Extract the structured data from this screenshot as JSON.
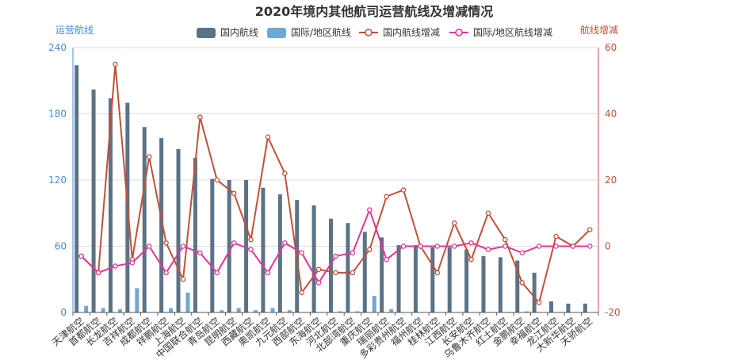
{
  "chart_data": {
    "type": "bar",
    "title": "2020年境内其他航司运营航线及增减情况",
    "ylabel_left": "运营航线",
    "ylabel_right": "航线增减",
    "ylim_left": [
      0,
      240
    ],
    "ylim_right": [
      -20,
      60
    ],
    "yticks_left": [
      0,
      60,
      120,
      180,
      240
    ],
    "yticks_right": [
      -20,
      0,
      20,
      40,
      60
    ],
    "grid": true,
    "legend_position": "top",
    "categories": [
      "天津航空",
      "首都航空",
      "长龙航空",
      "吉祥航空",
      "成都航空",
      "祥鹏航空",
      "上海航空",
      "中国联合航空",
      "青岛航空",
      "昆明航空",
      "西藏航空",
      "奥凯航空",
      "九元航空",
      "西部航空",
      "东海航空",
      "河北航空",
      "北部湾航空",
      "重庆航空",
      "瑞丽航空",
      "多彩贵州航空",
      "福州航空",
      "桂林航空",
      "江西航空",
      "长安航空",
      "乌鲁木齐航空",
      "红土航空",
      "金鹏航空",
      "幸福航空",
      "龙江航空",
      "大新华航空",
      "天骄航空"
    ],
    "series": [
      {
        "name": "国内航线",
        "type": "bar",
        "axis": "left",
        "color": "#5b7384",
        "values": [
          224,
          202,
          194,
          190,
          168,
          158,
          148,
          140,
          121,
          120,
          120,
          113,
          107,
          102,
          97,
          85,
          81,
          73,
          68,
          61,
          61,
          59,
          59,
          57,
          51,
          50,
          47,
          36,
          10,
          8,
          8
        ]
      },
      {
        "name": "国际/地区航线",
        "type": "bar",
        "axis": "left",
        "color": "#6fa8d6",
        "values": [
          6,
          4,
          3,
          22,
          0,
          4,
          18,
          0,
          2,
          4,
          2,
          4,
          2,
          0,
          0,
          1,
          1,
          15,
          3,
          0,
          0,
          0,
          0,
          0,
          0,
          0,
          1,
          0,
          0,
          0,
          0
        ]
      },
      {
        "name": "国内航线增减",
        "type": "line",
        "axis": "right",
        "color": "#c0513a",
        "values": [
          -3,
          -8,
          55,
          -4,
          27,
          1,
          -10,
          39,
          20,
          16,
          2,
          33,
          22,
          -14,
          -7,
          -8,
          -8,
          -1,
          15,
          17,
          0,
          -8,
          7,
          -4,
          10,
          2,
          -11,
          -17,
          3,
          0,
          5
        ]
      },
      {
        "name": "国际/地区航线增减",
        "type": "line",
        "axis": "right",
        "color": "#e0359c",
        "values": [
          -3,
          -8,
          -6,
          -5,
          0,
          -8,
          0,
          -2,
          -8,
          1,
          -1,
          -8,
          1,
          -2,
          -11,
          -3,
          -2,
          11,
          -4,
          0,
          0,
          0,
          0,
          1,
          -1,
          0,
          -2,
          0,
          0,
          0,
          0
        ]
      }
    ]
  }
}
